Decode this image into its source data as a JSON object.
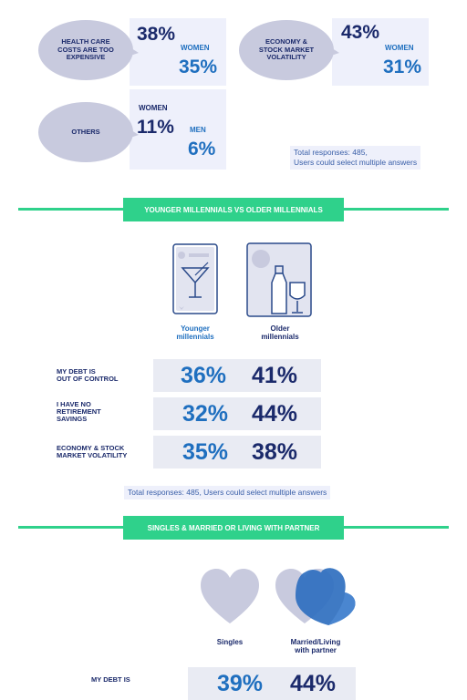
{
  "top": {
    "health": {
      "label": "HEALTH CARE COSTS ARE TOO EXPENSIVE",
      "pct_main": "38%",
      "group": "WOMEN",
      "pct_group": "35%"
    },
    "economy": {
      "label": "ECONOMY & STOCK MARKET VOLATILITY",
      "pct_main": "43%",
      "group": "WOMEN",
      "pct_group": "31%"
    },
    "others": {
      "label": "OTHERS",
      "group_a": "WOMEN",
      "pct_a": "11%",
      "group_b": "MEN",
      "pct_b": "6%"
    },
    "note": "Total responses: 485,\nUsers could select multiple answers"
  },
  "section1": {
    "banner": "YOUNGER MILLENNIALS VS OLDER MILLENNIALS",
    "col_a": "Younger\nmillennials",
    "col_b": "Older\nmillennials",
    "rows": [
      {
        "label": "MY DEBT IS\nOUT OF CONTROL",
        "a": "36%",
        "b": "41%"
      },
      {
        "label": "I HAVE NO\nRETIREMENT\nSAVINGS",
        "a": "32%",
        "b": "44%"
      },
      {
        "label": "ECONOMY & STOCK\nMARKET VOLATILITY",
        "a": "35%",
        "b": "38%"
      }
    ],
    "note": "Total responses: 485, Users could select multiple answers"
  },
  "section2": {
    "banner": "SINGLES & MARRIED OR LIVING WITH PARTNER",
    "col_a": "Singles",
    "col_b": "Married/Living\nwith partner",
    "rows": [
      {
        "label": "MY DEBT IS",
        "a": "39%",
        "b": "44%"
      }
    ]
  },
  "colors": {
    "navy": "#1b2a6b",
    "blue": "#1f6fbf",
    "green": "#2fd18b",
    "bubble": "#c8cade",
    "box": "#eef0fb"
  },
  "icons": [
    "cocktail-glass-icon",
    "wine-bottle-icon",
    "heart-icon",
    "double-heart-icon"
  ]
}
